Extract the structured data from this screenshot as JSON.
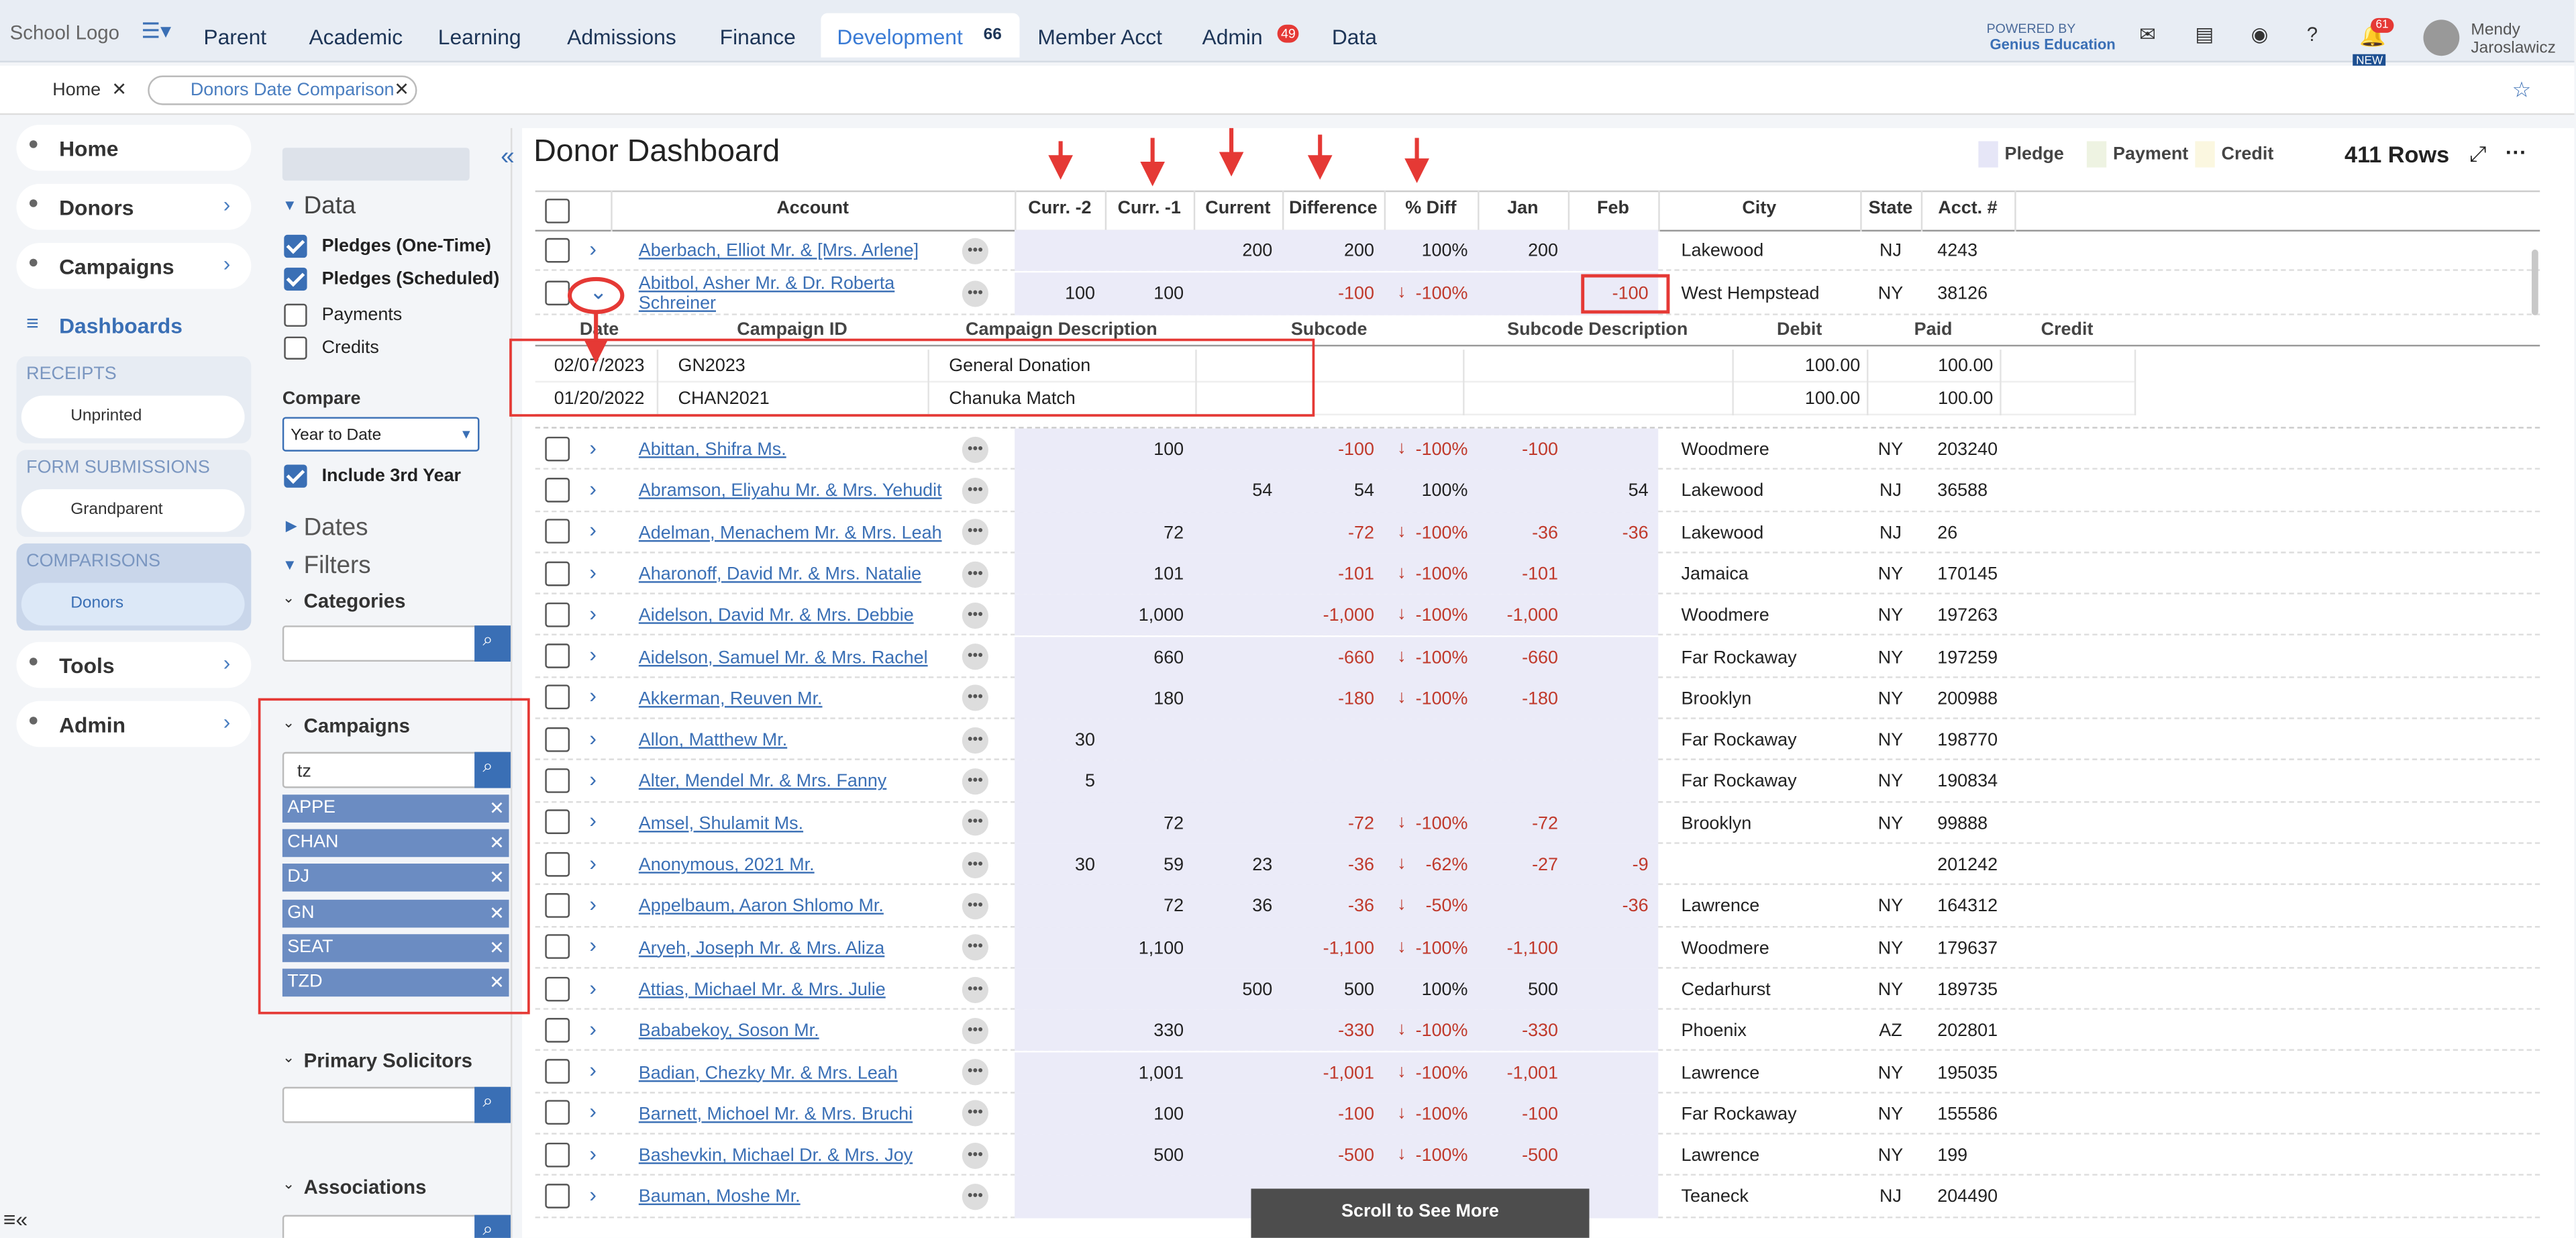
{
  "top_nav": {
    "logo": "School Logo",
    "items": [
      {
        "label": "Parent"
      },
      {
        "label": "Academic"
      },
      {
        "label": "Learning"
      },
      {
        "label": "Admissions"
      },
      {
        "label": "Finance"
      },
      {
        "label": "Development",
        "badge": "66",
        "active": true
      },
      {
        "label": "Member Acct"
      },
      {
        "label": "Admin",
        "badge": "49"
      },
      {
        "label": "Data"
      }
    ],
    "powered_by": "POWERED BY",
    "brand": "Genius Education",
    "notification_count": "61",
    "new_label": "NEW",
    "user_first": "Mendy",
    "user_last": "Jaroslawicz"
  },
  "tabs": [
    "Home",
    "Donors Date Comparison"
  ],
  "sidebar": {
    "items_top": [
      "Home",
      "Donors",
      "Campaigns",
      "Dashboards"
    ],
    "groups": [
      {
        "title": "RECEIPTS",
        "item": "Unprinted"
      },
      {
        "title": "FORM SUBMISSIONS",
        "item": "Grandparent"
      },
      {
        "title": "COMPARISONS",
        "item": "Donors"
      }
    ],
    "items_bottom": [
      "Tools",
      "Admin"
    ]
  },
  "filters": {
    "data_section": "Data",
    "checkboxes": [
      {
        "label": "Pledges (One-Time)",
        "checked": true
      },
      {
        "label": "Pledges (Scheduled)",
        "checked": true
      },
      {
        "label": "Payments",
        "checked": false
      },
      {
        "label": "Credits",
        "checked": false
      }
    ],
    "compare_label": "Compare",
    "compare_value": "Year to Date",
    "third_year": {
      "label": "Include 3rd Year",
      "checked": true
    },
    "dates": "Dates",
    "filters": "Filters",
    "categories": "Categories",
    "campaigns": "Campaigns",
    "campaign_search": "tz",
    "campaign_tags": [
      "APPE",
      "CHAN",
      "DJ",
      "GN",
      "SEAT",
      "TZD"
    ],
    "primary_solicitors": "Primary Solicitors",
    "associations": "Associations"
  },
  "main": {
    "title": "Donor Dashboard",
    "legend": [
      {
        "label": "Pledge",
        "color": "#e6e6f7"
      },
      {
        "label": "Payment",
        "color": "#eef3e2"
      },
      {
        "label": "Credit",
        "color": "#fbf7e0"
      }
    ],
    "row_count": "411 Rows",
    "columns": [
      "Account",
      "Curr. -2",
      "Curr. -1",
      "Current",
      "Difference",
      "% Diff",
      "Jan",
      "Feb",
      "City",
      "State",
      "Acct. #"
    ],
    "rows": [
      {
        "cells": [
          "Aberbach, Elliot Mr. & [Mrs. Arlene]",
          null,
          null,
          "200",
          "200",
          "100%",
          "200",
          null,
          "Lakewood",
          "NJ",
          "4243"
        ]
      },
      {
        "cells": [
          "Abitbol, Asher Mr. & Dr. Roberta Schreiner",
          "100",
          "100",
          null,
          "-100",
          "-100%",
          null,
          "-100",
          "West Hempstead",
          "NY",
          "38126"
        ],
        "expanded": true
      },
      {
        "cells": [
          "Abittan, Shifra Ms.",
          null,
          "100",
          null,
          "-100",
          "-100%",
          "-100",
          null,
          "Woodmere",
          "NY",
          "203240"
        ]
      },
      {
        "cells": [
          "Abramson, Eliyahu Mr. & Mrs. Yehudit",
          null,
          null,
          "54",
          "54",
          "100%",
          null,
          "54",
          "Lakewood",
          "NJ",
          "36588"
        ]
      },
      {
        "cells": [
          "Adelman, Menachem Mr. & Mrs. Leah",
          null,
          "72",
          null,
          "-72",
          "-100%",
          "-36",
          "-36",
          "Lakewood",
          "NJ",
          "26"
        ]
      },
      {
        "cells": [
          "Aharonoff, David Mr. & Mrs. Natalie",
          null,
          "101",
          null,
          "-101",
          "-100%",
          "-101",
          null,
          "Jamaica",
          "NY",
          "170145"
        ]
      },
      {
        "cells": [
          "Aidelson, David Mr. & Mrs. Debbie",
          null,
          "1,000",
          null,
          "-1,000",
          "-100%",
          "-1,000",
          null,
          "Woodmere",
          "NY",
          "197263"
        ]
      },
      {
        "cells": [
          "Aidelson, Samuel Mr. & Mrs. Rachel",
          null,
          "660",
          null,
          "-660",
          "-100%",
          "-660",
          null,
          "Far Rockaway",
          "NY",
          "197259"
        ]
      },
      {
        "cells": [
          "Akkerman, Reuven Mr.",
          null,
          "180",
          null,
          "-180",
          "-100%",
          "-180",
          null,
          "Brooklyn",
          "NY",
          "200988"
        ]
      },
      {
        "cells": [
          "Allon, Matthew Mr.",
          "30",
          null,
          null,
          null,
          null,
          null,
          null,
          "Far Rockaway",
          "NY",
          "198770"
        ]
      },
      {
        "cells": [
          "Alter, Mendel Mr. & Mrs. Fanny",
          "5",
          null,
          null,
          null,
          null,
          null,
          null,
          "Far Rockaway",
          "NY",
          "190834"
        ]
      },
      {
        "cells": [
          "Amsel, Shulamit Ms.",
          null,
          "72",
          null,
          "-72",
          "-100%",
          "-72",
          null,
          "Brooklyn",
          "NY",
          "99888"
        ]
      },
      {
        "cells": [
          "Anonymous, 2021 Mr.",
          "30",
          "59",
          "23",
          "-36",
          "-62%",
          "-27",
          "-9",
          null,
          null,
          "201242"
        ]
      },
      {
        "cells": [
          "Appelbaum, Aaron Shlomo Mr.",
          null,
          "72",
          "36",
          "-36",
          "-50%",
          null,
          "-36",
          "Lawrence",
          "NY",
          "164312"
        ]
      },
      {
        "cells": [
          "Aryeh, Joseph Mr. & Mrs. Aliza",
          null,
          "1,100",
          null,
          "-1,100",
          "-100%",
          "-1,100",
          null,
          "Woodmere",
          "NY",
          "179637"
        ]
      },
      {
        "cells": [
          "Attias, Michael Mr. & Mrs. Julie",
          null,
          null,
          "500",
          "500",
          "100%",
          "500",
          null,
          "Cedarhurst",
          "NY",
          "189735"
        ]
      },
      {
        "cells": [
          "Bababekoy, Soson Mr.",
          null,
          "330",
          null,
          "-330",
          "-100%",
          "-330",
          null,
          "Phoenix",
          "AZ",
          "202801"
        ]
      },
      {
        "cells": [
          "Badian, Chezky Mr. & Mrs. Leah",
          null,
          "1,001",
          null,
          "-1,001",
          "-100%",
          "-1,001",
          null,
          "Lawrence",
          "NY",
          "195035"
        ]
      },
      {
        "cells": [
          "Barnett, Michoel Mr. & Mrs. Bruchi",
          null,
          "100",
          null,
          "-100",
          "-100%",
          "-100",
          null,
          "Far Rockaway",
          "NY",
          "155586"
        ]
      },
      {
        "cells": [
          "Bashevkin, Michael Dr. & Mrs. Joy",
          null,
          "500",
          null,
          "-500",
          "-100%",
          "-500",
          null,
          "Lawrence",
          "NY",
          "199"
        ]
      },
      {
        "cells": [
          "Bauman, Moshe Mr.",
          null,
          null,
          null,
          null,
          null,
          null,
          null,
          "Teaneck",
          "NJ",
          "204490"
        ]
      }
    ],
    "detail": {
      "columns": [
        "Date",
        "Campaign ID",
        "Campaign Description",
        "Subcode",
        "Subcode Description",
        "Debit",
        "Paid",
        "Credit"
      ],
      "rows": [
        [
          "02/07/2023",
          "GN2023",
          "General Donation",
          null,
          null,
          "100.00",
          "100.00",
          null
        ],
        [
          "01/20/2022",
          "CHAN2021",
          "Chanuka Match",
          null,
          null,
          "100.00",
          "100.00",
          null
        ]
      ]
    },
    "scroll_hint": "Scroll to See More"
  }
}
